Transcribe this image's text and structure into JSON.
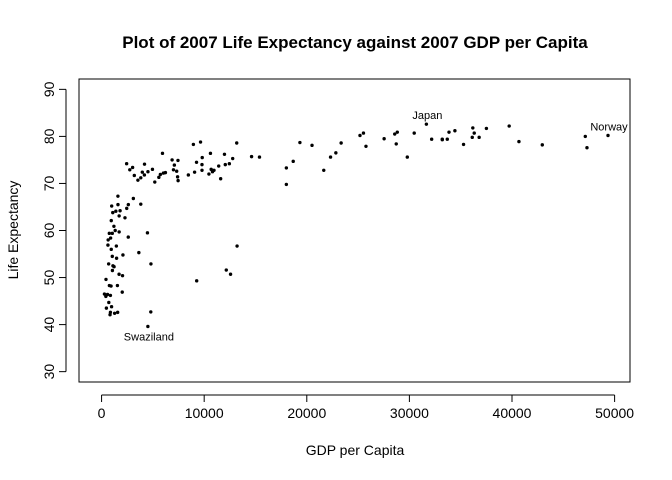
{
  "chart_data": {
    "type": "scatter",
    "title": "Plot of 2007 Life Expectancy against 2007 GDP per Capita",
    "xlabel": "GDP per Capita",
    "ylabel": "Life Expectancy",
    "xlim": [
      -2200,
      51500
    ],
    "ylim": [
      27.8,
      92.2
    ],
    "x_ticks": [
      0,
      10000,
      20000,
      30000,
      40000,
      50000
    ],
    "y_ticks": [
      30,
      40,
      50,
      60,
      70,
      80,
      90
    ],
    "grid": false,
    "legend": "none",
    "annotations": [
      {
        "text": "Japan",
        "x": 31656,
        "y": 82.6
      },
      {
        "text": "Norway",
        "x": 49357,
        "y": 80.2
      },
      {
        "text": "Swaziland",
        "x": 4513,
        "y": 39.6
      }
    ],
    "points": [
      {
        "x": 974,
        "y": 43.8
      },
      {
        "x": 5937,
        "y": 76.4
      },
      {
        "x": 6223,
        "y": 72.3
      },
      {
        "x": 4797,
        "y": 42.7
      },
      {
        "x": 12779,
        "y": 75.3
      },
      {
        "x": 34435,
        "y": 81.2
      },
      {
        "x": 36126,
        "y": 79.8
      },
      {
        "x": 29796,
        "y": 75.6
      },
      {
        "x": 1391,
        "y": 64.1
      },
      {
        "x": 33693,
        "y": 79.4
      },
      {
        "x": 1441,
        "y": 56.7
      },
      {
        "x": 3822,
        "y": 65.6
      },
      {
        "x": 7446,
        "y": 74.9
      },
      {
        "x": 12570,
        "y": 50.7
      },
      {
        "x": 9066,
        "y": 72.4
      },
      {
        "x": 10681,
        "y": 73.0
      },
      {
        "x": 1217,
        "y": 52.3
      },
      {
        "x": 430,
        "y": 49.6
      },
      {
        "x": 1713,
        "y": 59.7
      },
      {
        "x": 2042,
        "y": 50.4
      },
      {
        "x": 36319,
        "y": 80.7
      },
      {
        "x": 706,
        "y": 44.7
      },
      {
        "x": 1704,
        "y": 50.7
      },
      {
        "x": 13172,
        "y": 78.6
      },
      {
        "x": 4959,
        "y": 73.0
      },
      {
        "x": 7006,
        "y": 72.9
      },
      {
        "x": 986,
        "y": 65.2
      },
      {
        "x": 278,
        "y": 46.5
      },
      {
        "x": 3633,
        "y": 55.3
      },
      {
        "x": 9645,
        "y": 78.8
      },
      {
        "x": 1544,
        "y": 48.3
      },
      {
        "x": 14619,
        "y": 75.7
      },
      {
        "x": 8948,
        "y": 78.3
      },
      {
        "x": 22833,
        "y": 76.5
      },
      {
        "x": 35278,
        "y": 78.3
      },
      {
        "x": 2082,
        "y": 54.8
      },
      {
        "x": 6025,
        "y": 72.2
      },
      {
        "x": 6873,
        "y": 75.0
      },
      {
        "x": 5581,
        "y": 71.3
      },
      {
        "x": 5728,
        "y": 71.9
      },
      {
        "x": 12154,
        "y": 51.6
      },
      {
        "x": 641,
        "y": 58.0
      },
      {
        "x": 690,
        "y": 52.9
      },
      {
        "x": 33207,
        "y": 79.3
      },
      {
        "x": 30470,
        "y": 80.7
      },
      {
        "x": 13206,
        "y": 56.7
      },
      {
        "x": 753,
        "y": 59.4
      },
      {
        "x": 32170,
        "y": 79.4
      },
      {
        "x": 1327,
        "y": 60.0
      },
      {
        "x": 27538,
        "y": 79.5
      },
      {
        "x": 5186,
        "y": 70.3
      },
      {
        "x": 943,
        "y": 56.0
      },
      {
        "x": 580,
        "y": 46.4
      },
      {
        "x": 1202,
        "y": 60.9
      },
      {
        "x": 39725,
        "y": 82.2
      },
      {
        "x": 18009,
        "y": 73.3
      },
      {
        "x": 36181,
        "y": 81.8
      },
      {
        "x": 2452,
        "y": 64.7
      },
      {
        "x": 3541,
        "y": 70.7
      },
      {
        "x": 11606,
        "y": 71.0
      },
      {
        "x": 4471,
        "y": 59.5
      },
      {
        "x": 40676,
        "y": 78.9
      },
      {
        "x": 25523,
        "y": 80.7
      },
      {
        "x": 28570,
        "y": 80.5
      },
      {
        "x": 7321,
        "y": 72.6
      },
      {
        "x": 31656,
        "y": 82.6
      },
      {
        "x": 4519,
        "y": 72.5
      },
      {
        "x": 1463,
        "y": 54.1
      },
      {
        "x": 1593,
        "y": 67.3
      },
      {
        "x": 23348,
        "y": 78.6
      },
      {
        "x": 47307,
        "y": 77.6
      },
      {
        "x": 10461,
        "y": 72.0
      },
      {
        "x": 1569,
        "y": 42.6
      },
      {
        "x": 415,
        "y": 46.0
      },
      {
        "x": 12057,
        "y": 74.0
      },
      {
        "x": 1045,
        "y": 59.4
      },
      {
        "x": 759,
        "y": 48.3
      },
      {
        "x": 12452,
        "y": 74.2
      },
      {
        "x": 1043,
        "y": 54.5
      },
      {
        "x": 1804,
        "y": 64.2
      },
      {
        "x": 10957,
        "y": 72.8
      },
      {
        "x": 11978,
        "y": 76.2
      },
      {
        "x": 3096,
        "y": 66.8
      },
      {
        "x": 9254,
        "y": 74.5
      },
      {
        "x": 3821,
        "y": 71.2
      },
      {
        "x": 824,
        "y": 42.1
      },
      {
        "x": 945,
        "y": 62.1
      },
      {
        "x": 4811,
        "y": 52.9
      },
      {
        "x": 1091,
        "y": 63.8
      },
      {
        "x": 36798,
        "y": 79.8
      },
      {
        "x": 25185,
        "y": 80.2
      },
      {
        "x": 2749,
        "y": 72.9
      },
      {
        "x": 620,
        "y": 56.9
      },
      {
        "x": 2014,
        "y": 46.9
      },
      {
        "x": 49357,
        "y": 80.2
      },
      {
        "x": 22316,
        "y": 75.6
      },
      {
        "x": 2606,
        "y": 65.5
      },
      {
        "x": 9809,
        "y": 75.5
      },
      {
        "x": 4173,
        "y": 71.8
      },
      {
        "x": 7409,
        "y": 71.4
      },
      {
        "x": 3190,
        "y": 71.7
      },
      {
        "x": 15390,
        "y": 75.6
      },
      {
        "x": 20510,
        "y": 78.1
      },
      {
        "x": 19329,
        "y": 78.7
      },
      {
        "x": 10808,
        "y": 72.5
      },
      {
        "x": 9787,
        "y": 72.8
      },
      {
        "x": 863,
        "y": 46.2
      },
      {
        "x": 1598,
        "y": 65.5
      },
      {
        "x": 21655,
        "y": 72.8
      },
      {
        "x": 1712,
        "y": 63.1
      },
      {
        "x": 9786,
        "y": 74.0
      },
      {
        "x": 863,
        "y": 42.6
      },
      {
        "x": 47143,
        "y": 80.0
      },
      {
        "x": 18678,
        "y": 74.7
      },
      {
        "x": 25768,
        "y": 77.9
      },
      {
        "x": 926,
        "y": 48.2
      },
      {
        "x": 9270,
        "y": 49.3
      },
      {
        "x": 28821,
        "y": 80.9
      },
      {
        "x": 3970,
        "y": 72.4
      },
      {
        "x": 2602,
        "y": 58.6
      },
      {
        "x": 4513,
        "y": 39.6
      },
      {
        "x": 33860,
        "y": 80.9
      },
      {
        "x": 37506,
        "y": 81.7
      },
      {
        "x": 4185,
        "y": 74.1
      },
      {
        "x": 28718,
        "y": 78.4
      },
      {
        "x": 1107,
        "y": 52.5
      },
      {
        "x": 7458,
        "y": 70.6
      },
      {
        "x": 882,
        "y": 58.4
      },
      {
        "x": 18009,
        "y": 69.8
      },
      {
        "x": 7093,
        "y": 73.9
      },
      {
        "x": 8458,
        "y": 71.8
      },
      {
        "x": 1056,
        "y": 51.5
      },
      {
        "x": 33203,
        "y": 79.4
      },
      {
        "x": 42952,
        "y": 78.2
      },
      {
        "x": 10611,
        "y": 76.4
      },
      {
        "x": 11416,
        "y": 73.7
      },
      {
        "x": 2442,
        "y": 74.2
      },
      {
        "x": 3025,
        "y": 73.4
      },
      {
        "x": 2281,
        "y": 62.7
      },
      {
        "x": 1271,
        "y": 42.4
      },
      {
        "x": 470,
        "y": 43.5
      }
    ]
  }
}
